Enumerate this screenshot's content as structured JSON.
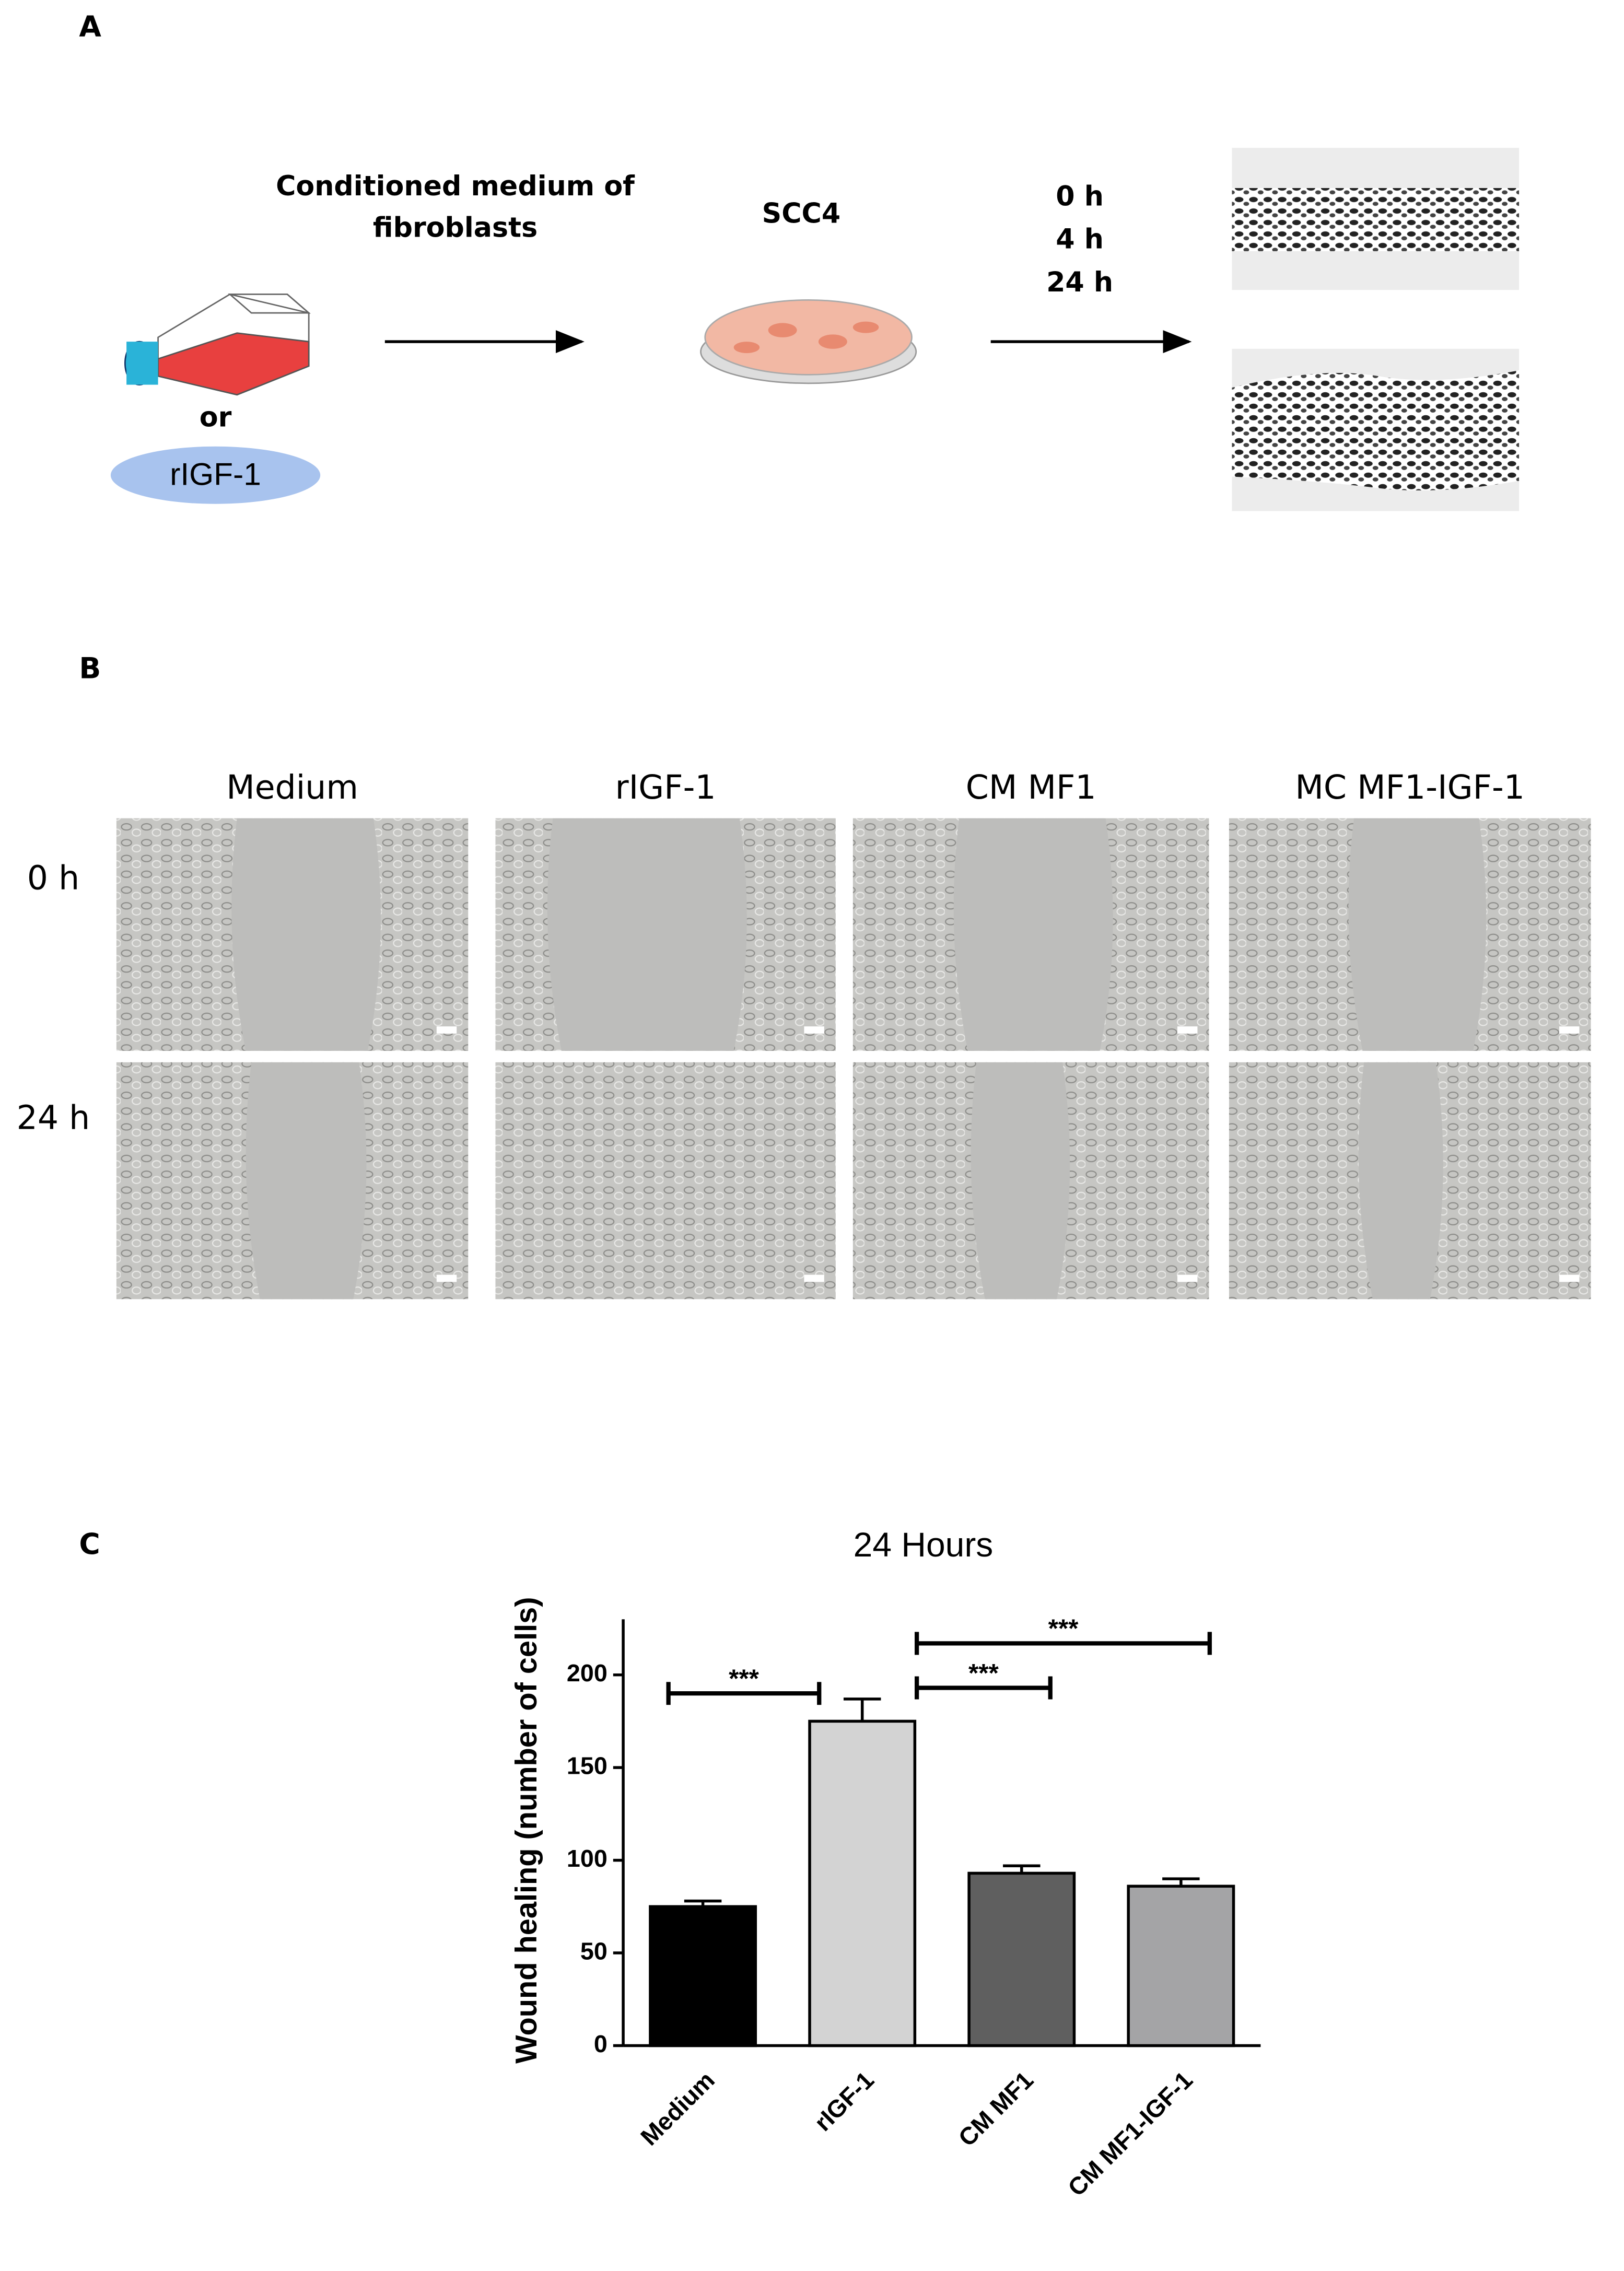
{
  "panel_a": {
    "label": "A",
    "source_lines": [
      "Conditioned medium of",
      "fibroblasts"
    ],
    "or": "or",
    "factor": "rIGF-1",
    "cells": "SCC4",
    "times": [
      "0 h",
      "4 h",
      "24 h"
    ]
  },
  "panel_b": {
    "label": "B",
    "columns": [
      "Medium",
      "rIGF-1",
      "CM MF1",
      "MC MF1-IGF-1"
    ],
    "rows": [
      "0 h",
      "24 h"
    ]
  },
  "panel_c": {
    "label": "C"
  },
  "chart_data": {
    "type": "bar",
    "title": "24 Hours",
    "y_label": "Wound healing (number of cells)",
    "categories": [
      "Medium",
      "rIGF-1",
      "CM MF1",
      "CM MF1-IGF-1"
    ],
    "values": [
      75,
      175,
      93,
      86
    ],
    "errors": [
      3,
      12,
      4,
      4
    ],
    "colors": [
      "#000000",
      "#d3d3d3",
      "#5f5f5f",
      "#a4a4a6"
    ],
    "ylim": [
      0,
      230
    ],
    "yticks": [
      0,
      50,
      100,
      150,
      200
    ],
    "grid": false,
    "significance": [
      {
        "pair": [
          0,
          1
        ],
        "y": 190,
        "label": "***"
      },
      {
        "pair": [
          1,
          2
        ],
        "y": 193,
        "label": "***"
      },
      {
        "pair": [
          1,
          3
        ],
        "y": 217,
        "label": "***"
      }
    ]
  }
}
